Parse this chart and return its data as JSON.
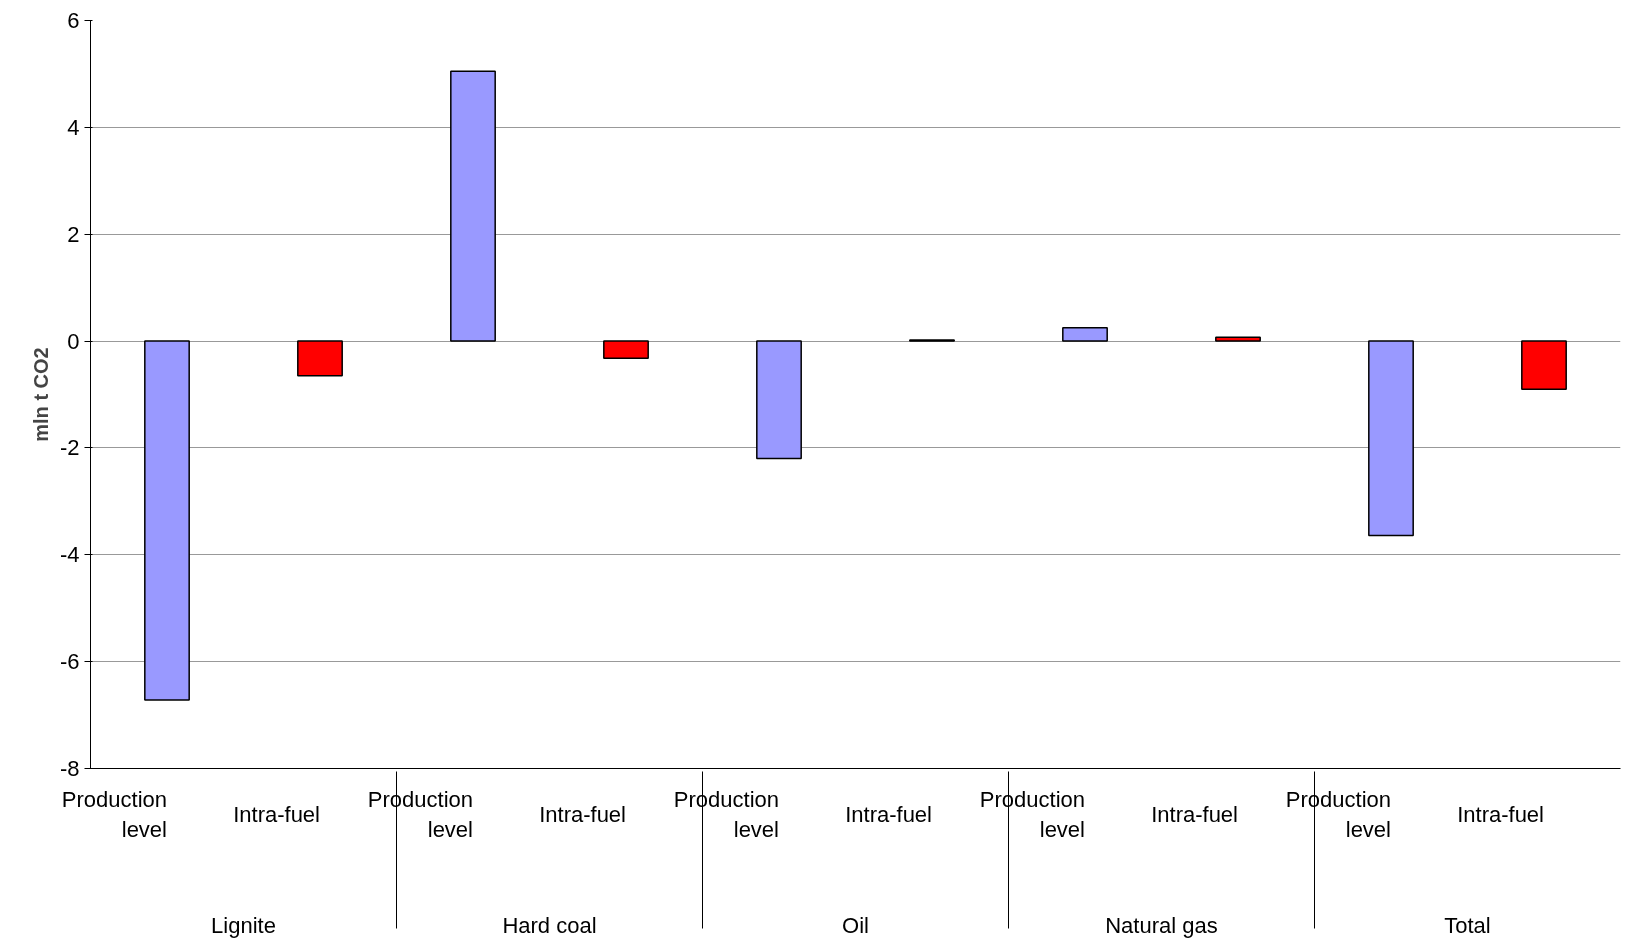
{
  "chart_data": {
    "type": "bar",
    "ylabel": "mln t CO2",
    "categories": [
      "Production level",
      "Intra-fuel",
      "Production level",
      "Intra-fuel",
      "Production level",
      "Intra-fuel",
      "Production level",
      "Intra-fuel",
      "Production level",
      "Intra-fuel"
    ],
    "annotations": [
      "Lignite",
      "Hard coal",
      "Oil",
      "Natural gas",
      "Total"
    ],
    "values": [
      -6.72,
      -0.65,
      5.05,
      -0.32,
      -2.2,
      0.02,
      0.25,
      0.07,
      -3.64,
      -0.9
    ],
    "colors": [
      "#9999ff",
      "#ff0000",
      "#9999ff",
      "#ff0000",
      "#9999ff",
      "#ff0000",
      "#9999ff",
      "#ff0000",
      "#9999ff",
      "#ff0000"
    ],
    "ylim": [
      -8,
      6
    ],
    "yticks": [
      -8,
      -6,
      -4,
      -2,
      0,
      2,
      4,
      6
    ],
    "grid": "y"
  }
}
